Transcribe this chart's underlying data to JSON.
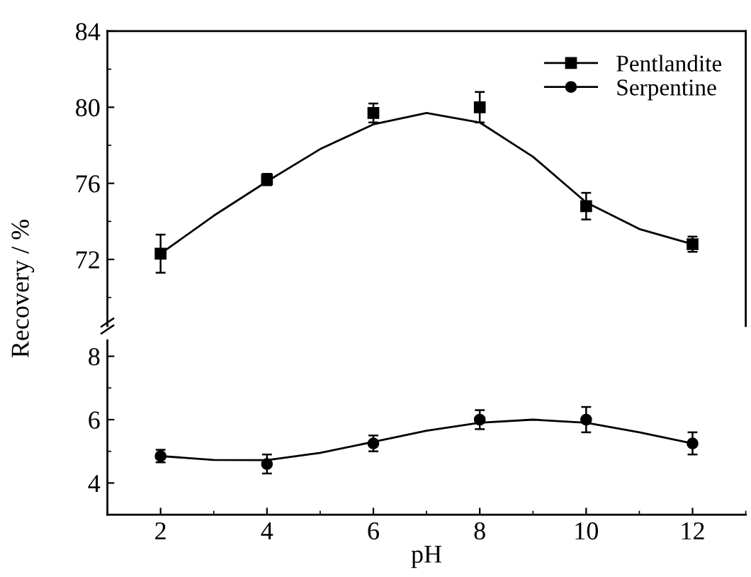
{
  "chart_data": [
    {
      "type": "scatter",
      "ylabel": "Recovery / %",
      "x": [
        2,
        4,
        6,
        8,
        10,
        12
      ],
      "xlim": [
        1,
        13
      ],
      "xticks": [
        2,
        4,
        6,
        8,
        10,
        12
      ],
      "ylim": [
        68.5,
        84
      ],
      "yticks": [
        72,
        76,
        80,
        84
      ],
      "tick_labels": "y",
      "legend": "top right",
      "series": [
        {
          "name": "Pentlandite",
          "marker": "square",
          "color": "#000000",
          "values": [
            72.3,
            76.2,
            79.7,
            80.0,
            74.8,
            72.8
          ],
          "errors": [
            1.0,
            0.3,
            0.5,
            0.8,
            0.7,
            0.4
          ]
        },
        {
          "type": "line",
          "color": "#000000",
          "x": [
            2,
            3,
            4,
            5,
            6,
            7,
            8,
            9,
            10,
            11,
            12
          ],
          "values": [
            72.3,
            74.3,
            76.1,
            77.8,
            79.1,
            79.7,
            79.2,
            77.4,
            75.0,
            73.6,
            72.8
          ]
        }
      ]
    },
    {
      "type": "scatter",
      "xlabel": "pH",
      "x": [
        2,
        4,
        6,
        8,
        10,
        12
      ],
      "xlim": [
        1,
        13
      ],
      "xticks": [
        2,
        4,
        6,
        8,
        10,
        12
      ],
      "ylim": [
        3,
        8.5
      ],
      "yticks": [
        4,
        6,
        8
      ],
      "series": [
        {
          "name": "Serpentine",
          "marker": "circle",
          "color": "#000000",
          "values": [
            4.85,
            4.6,
            5.25,
            6.0,
            6.0,
            5.25
          ],
          "errors": [
            0.2,
            0.3,
            0.25,
            0.3,
            0.4,
            0.35
          ]
        },
        {
          "type": "line",
          "color": "#000000",
          "x": [
            2,
            3,
            4,
            5,
            6,
            7,
            8,
            9,
            10,
            11,
            12
          ],
          "values": [
            4.85,
            4.73,
            4.72,
            4.95,
            5.3,
            5.65,
            5.9,
            6.0,
            5.9,
            5.6,
            5.25
          ]
        }
      ]
    }
  ]
}
